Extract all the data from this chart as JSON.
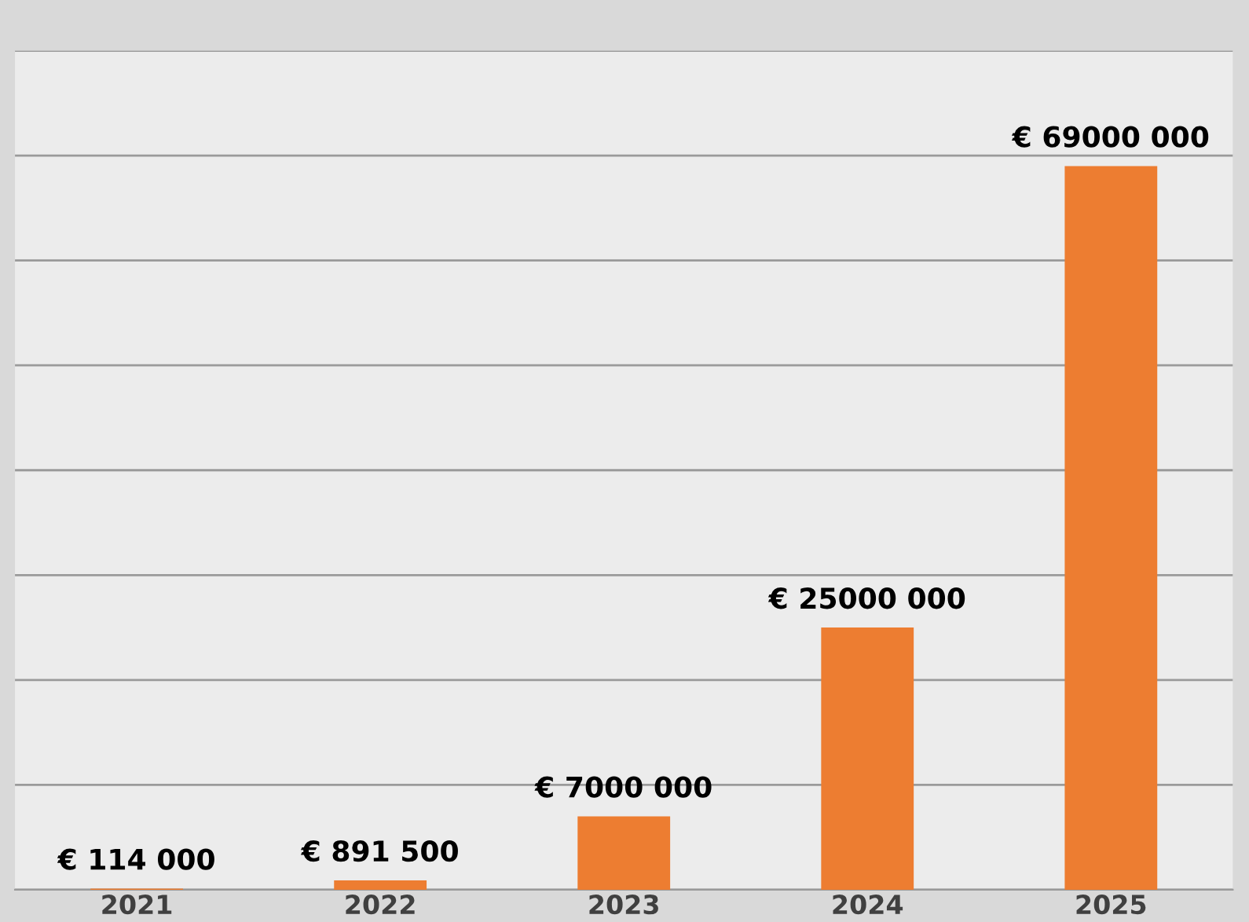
{
  "chart_data": {
    "type": "bar",
    "categories": [
      "2021",
      "2022",
      "2023",
      "2024",
      "2025"
    ],
    "values": [
      114000,
      891500,
      7000000,
      25000000,
      69000000
    ],
    "value_labels": [
      "€ 114 000",
      "€ 891 500",
      "€ 7000 000",
      "€ 25000 000",
      "€ 69000 000"
    ],
    "color": "#ed7d31",
    "ylim": [
      0,
      80000000
    ],
    "yticks": [
      {
        "value": 0,
        "label": null
      },
      {
        "value": 10000000,
        "label": null
      },
      {
        "value": 20000000,
        "label": null
      },
      {
        "value": 30000000,
        "label": null
      },
      {
        "value": 40000000,
        "label": null
      },
      {
        "value": 50000000,
        "label": null
      },
      {
        "value": 60000000,
        "label": null
      },
      {
        "value": 70000000,
        "label": null
      },
      {
        "value": 80000000,
        "label": null
      }
    ],
    "tick_labels": "x",
    "grid": "y"
  }
}
